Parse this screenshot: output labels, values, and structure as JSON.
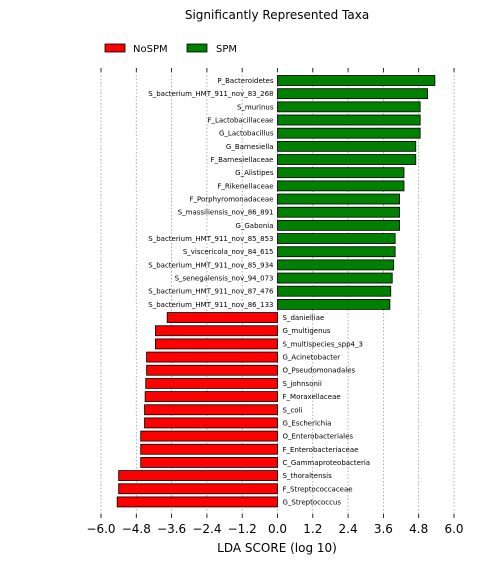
{
  "chart_data": {
    "type": "bar",
    "orientation": "horizontal",
    "title": "Significantly Represented Taxa",
    "xlabel": "LDA SCORE (log 10)",
    "ylabel": "",
    "xlim": [
      -6.0,
      6.0
    ],
    "xticks": [
      "−6.0",
      "−4.8",
      "−3.6",
      "−2.4",
      "−1.2",
      "0.0",
      "1.2",
      "2.4",
      "3.6",
      "4.8",
      "6.0"
    ],
    "xtick_values": [
      -6.0,
      -4.8,
      -3.6,
      -2.4,
      -1.2,
      0.0,
      1.2,
      2.4,
      3.6,
      4.8,
      6.0
    ],
    "grid": "vertical dotted",
    "legend": {
      "placement": "top-left",
      "entries": [
        {
          "name": "NoSPM",
          "color": "#ff0000"
        },
        {
          "name": "SPM",
          "color": "#008000"
        }
      ]
    },
    "series": [
      {
        "name": "SPM",
        "color": "#008000",
        "categories": [
          "P_Bacteroidetes",
          "S_bacterium_HMT_911_nov_83_268",
          "S_murinus",
          "F_Lactobacillaceae",
          "G_Lactobacillus",
          "G_Barnesiella",
          "F_Barnesiellaceae",
          "G_Alistipes",
          "F_Rikenellaceae",
          "F_Porphyromonadaceae",
          "S_massiliensis_nov_86_891",
          "G_Gabonia",
          "S_bacterium_HMT_911_nov_85_853",
          "S_viscericola_nov_84_615",
          "S_bacterium_HMT_911_nov_85_934",
          "S_senegalensis_nov_94_073",
          "S_bacterium_HMT_911_nov_87_476",
          "S_bacterium_HMT_911_nov_86_133"
        ],
        "values": [
          5.35,
          5.1,
          4.85,
          4.85,
          4.85,
          4.7,
          4.7,
          4.3,
          4.3,
          4.15,
          4.15,
          4.15,
          4.0,
          4.0,
          3.95,
          3.9,
          3.85,
          3.82
        ]
      },
      {
        "name": "NoSPM",
        "color": "#ff0000",
        "categories": [
          "S_danielliae",
          "G_multigenus",
          "S_multispecies_spp4_3",
          "G_Acinetobacter",
          "O_Pseudomonadales",
          "S_johnsonii",
          "F_Moraxellaceae",
          "S_coli",
          "G_Escherichia",
          "O_Enterobacteriales",
          "F_Enterobacteriaceae",
          "C_Gammaproteobacteria",
          "S_thoraltensis",
          "F_Streptococcaceae",
          "G_Streptococcus"
        ],
        "values": [
          -3.75,
          -4.15,
          -4.15,
          -4.45,
          -4.45,
          -4.48,
          -4.5,
          -4.52,
          -4.52,
          -4.65,
          -4.65,
          -4.65,
          -5.4,
          -5.4,
          -5.45
        ]
      }
    ]
  }
}
